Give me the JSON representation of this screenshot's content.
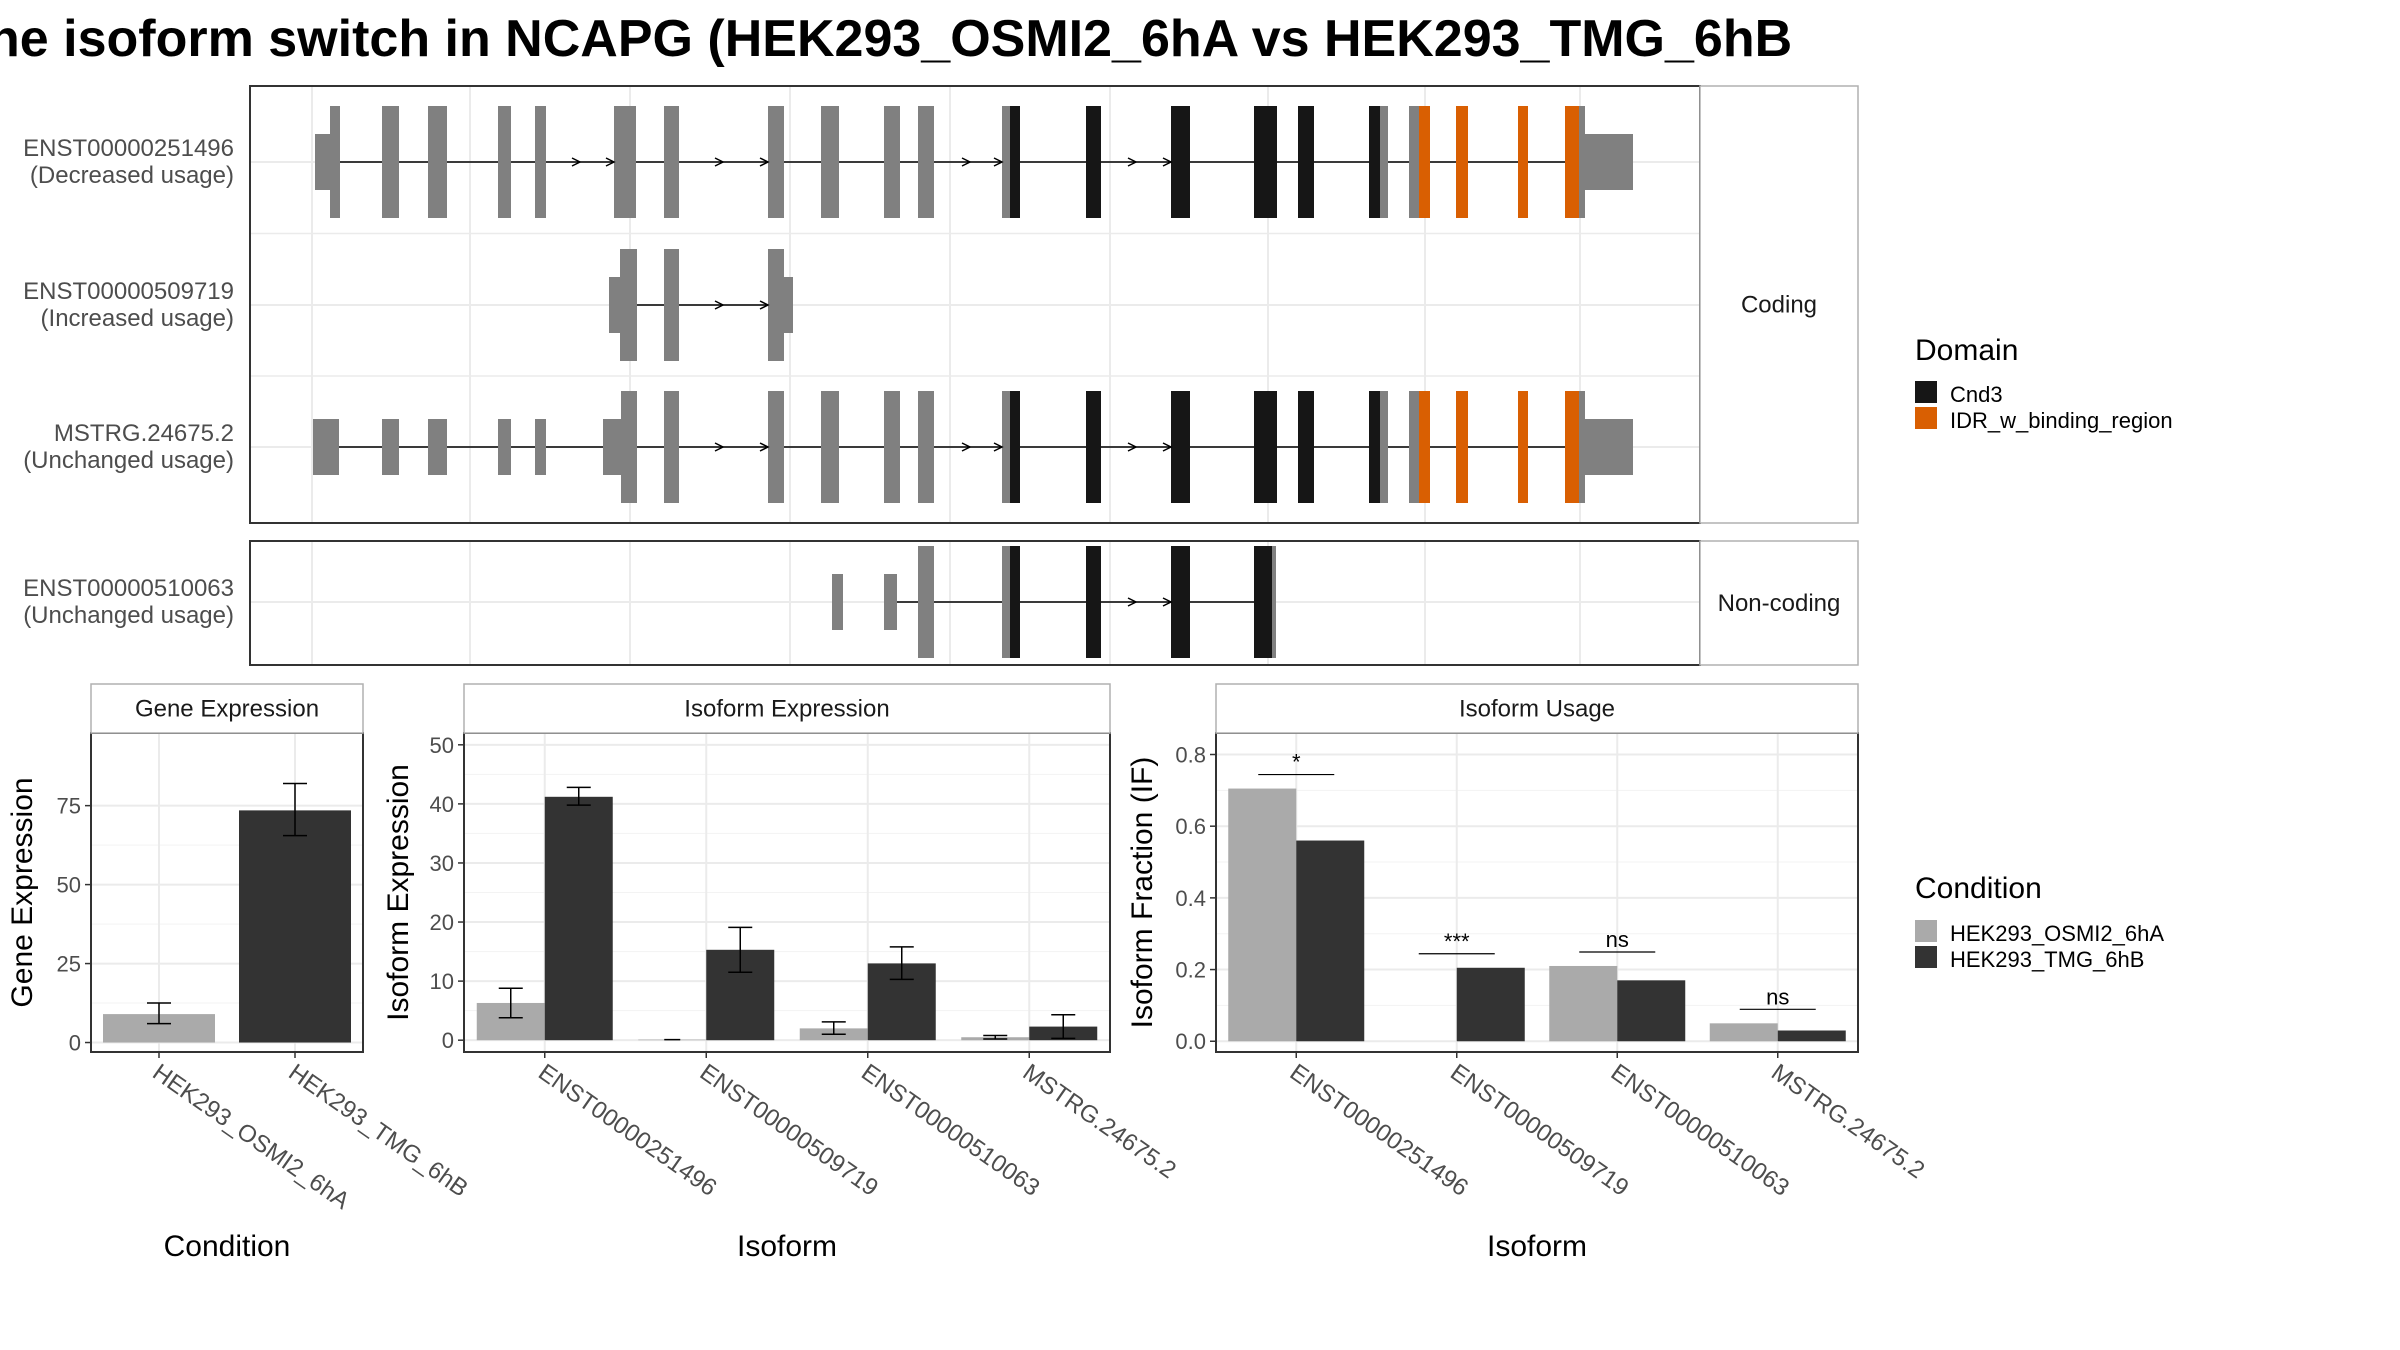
{
  "title": "he isoform switch in NCAPG (HEK293_OSMI2_6hA vs HEK293_TMG_6hB",
  "colors": {
    "condition_a": "#aaaaaa",
    "condition_b": "#333333",
    "exon_none": "#808080",
    "cnd3": "#161616",
    "idr": "#d95f02",
    "grid": "#ebebeb",
    "panel_border": "#333333",
    "strip_border": "#b0b0b0"
  },
  "transcript_panels": [
    {
      "strip": "Coding",
      "rows": [
        {
          "id": "ENST00000251496",
          "usage": "(Decreased usage)"
        },
        {
          "id": "ENST00000509719",
          "usage": "(Increased usage)"
        },
        {
          "id": "MSTRG.24675.2",
          "usage": "(Unchanged usage)"
        }
      ]
    },
    {
      "strip": "Non-coding",
      "rows": [
        {
          "id": "ENST00000510063",
          "usage": "(Unchanged usage)"
        }
      ]
    }
  ],
  "legends": {
    "domain": {
      "title": "Domain",
      "items": [
        {
          "label": "Cnd3",
          "color": "#161616"
        },
        {
          "label": "IDR_w_binding_region",
          "color": "#d95f02"
        }
      ]
    },
    "condition": {
      "title": "Condition",
      "items": [
        {
          "label": "HEK293_OSMI2_6hA",
          "color": "#aaaaaa"
        },
        {
          "label": "HEK293_TMG_6hB",
          "color": "#333333"
        }
      ]
    }
  },
  "chart_data": [
    {
      "type": "bar",
      "title": "Gene Expression",
      "xlabel": "Condition",
      "ylabel": "Gene Expression",
      "categories": [
        "HEK293_OSMI2_6hA",
        "HEK293_TMG_6hB"
      ],
      "values": [
        9,
        73.5
      ],
      "error_low": [
        6,
        65.5
      ],
      "error_high": [
        12.5,
        82
      ],
      "ylim": [
        -3,
        98
      ],
      "yticks": [
        0,
        25,
        50,
        75
      ],
      "grid": true
    },
    {
      "type": "bar",
      "title": "Isoform Expression",
      "xlabel": "Isoform",
      "ylabel": "Isoform Expression",
      "categories": [
        "ENST00000251496",
        "ENST00000509719",
        "ENST00000510063",
        "MSTRG.24675.2"
      ],
      "series": [
        {
          "name": "HEK293_OSMI2_6hA",
          "values": [
            6.3,
            0.1,
            2.0,
            0.5
          ],
          "error_low": [
            3.8,
            0,
            1.0,
            0.2
          ],
          "error_high": [
            8.8,
            0.2,
            3.1,
            0.8
          ]
        },
        {
          "name": "HEK293_TMG_6hB",
          "values": [
            41.2,
            15.3,
            13.0,
            2.3
          ],
          "error_low": [
            39.8,
            11.5,
            10.3,
            0.3
          ],
          "error_high": [
            42.8,
            19.1,
            15.8,
            4.3
          ]
        }
      ],
      "ylim": [
        -2,
        52
      ],
      "yticks": [
        0,
        10,
        20,
        30,
        40,
        50
      ],
      "grid": true
    },
    {
      "type": "bar",
      "title": "Isoform Usage",
      "xlabel": "Isoform",
      "ylabel": "Isoform Fraction (IF)",
      "categories": [
        "ENST00000251496",
        "ENST00000509719",
        "ENST00000510063",
        "MSTRG.24675.2"
      ],
      "series": [
        {
          "name": "HEK293_OSMI2_6hA",
          "values": [
            0.705,
            0.0,
            0.21,
            0.05
          ]
        },
        {
          "name": "HEK293_TMG_6hB",
          "values": [
            0.56,
            0.205,
            0.17,
            0.03
          ]
        }
      ],
      "significance": [
        "*",
        "***",
        "ns",
        "ns"
      ],
      "ylim": [
        -0.03,
        0.86
      ],
      "yticks": [
        0.0,
        0.2,
        0.4,
        0.6,
        0.8
      ],
      "grid": true
    }
  ]
}
